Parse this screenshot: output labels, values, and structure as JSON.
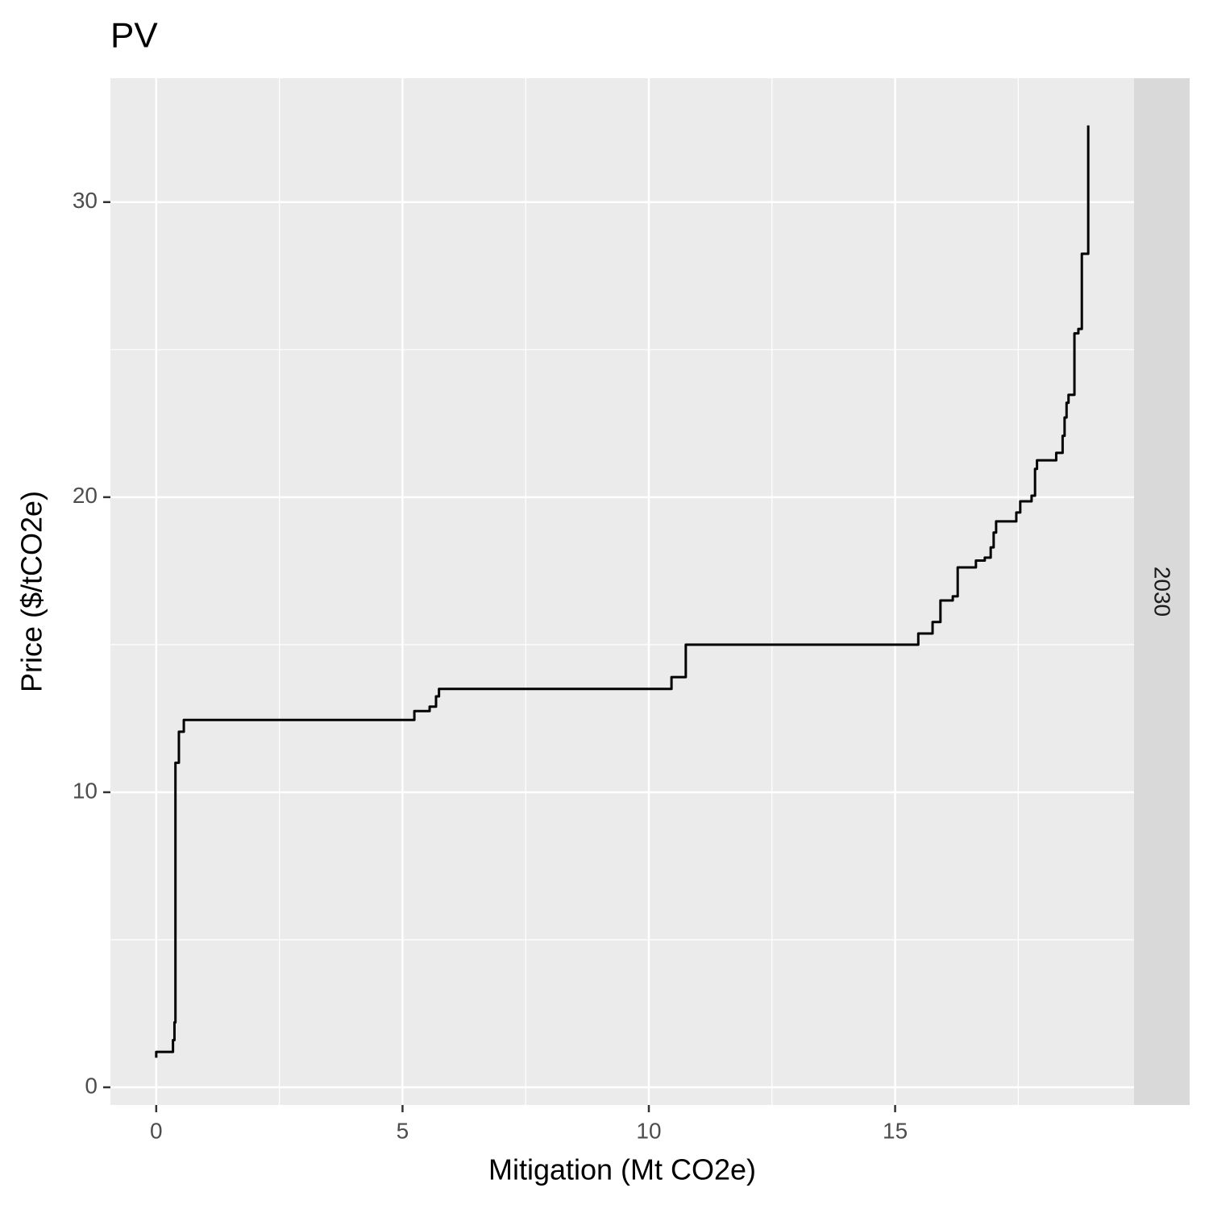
{
  "chart_data": {
    "type": "line",
    "title": "PV",
    "xlabel": "Mitigation (Mt CO2e)",
    "ylabel": "Price ($/tCO2e)",
    "facet_label": "2030",
    "x": [
      0,
      0,
      0.34,
      0.34,
      0.37,
      0.37,
      0.39,
      0.39,
      0.46,
      0.46,
      0.56,
      0.56,
      5.24,
      5.24,
      5.55,
      5.55,
      5.68,
      5.68,
      5.74,
      5.74,
      10.46,
      10.46,
      10.75,
      10.75,
      15.47,
      15.47,
      15.76,
      15.76,
      15.92,
      15.92,
      16.17,
      16.17,
      16.27,
      16.27,
      16.64,
      16.64,
      16.82,
      16.82,
      16.94,
      16.94,
      17.0,
      17.0,
      17.05,
      17.05,
      17.46,
      17.46,
      17.54,
      17.54,
      17.77,
      17.77,
      17.84,
      17.84,
      17.88,
      17.88,
      18.27,
      18.27,
      18.4,
      18.4,
      18.44,
      18.44,
      18.48,
      18.48,
      18.52,
      18.52,
      18.64,
      18.64,
      18.72,
      18.72,
      18.79,
      18.79,
      18.92,
      18.92
    ],
    "values": [
      1.0,
      1.2,
      1.2,
      1.6,
      1.6,
      2.2,
      2.2,
      11.0,
      11.0,
      12.05,
      12.05,
      12.45,
      12.45,
      12.75,
      12.75,
      12.9,
      12.9,
      13.25,
      13.25,
      13.5,
      13.5,
      13.9,
      13.9,
      15.0,
      15.0,
      15.38,
      15.38,
      15.77,
      15.77,
      16.5,
      16.5,
      16.64,
      16.64,
      17.62,
      17.62,
      17.85,
      17.85,
      17.95,
      17.95,
      18.3,
      18.3,
      18.8,
      18.8,
      19.18,
      19.18,
      19.48,
      19.48,
      19.86,
      19.86,
      20.05,
      20.05,
      20.96,
      20.96,
      21.25,
      21.25,
      21.5,
      21.5,
      22.08,
      22.08,
      22.7,
      22.7,
      23.2,
      23.2,
      23.47,
      23.47,
      25.55,
      25.55,
      25.7,
      25.7,
      28.25,
      28.25,
      32.6
    ],
    "color": "#000000",
    "xlim": [
      -0.93,
      19.85
    ],
    "ylim": [
      -0.6,
      34.2
    ],
    "xticks": [
      0,
      5,
      10,
      15
    ],
    "yticks": [
      0,
      10,
      20,
      30
    ],
    "x_minor_ticks": [
      2.5,
      7.5,
      12.5,
      17.5
    ],
    "y_minor_ticks": [
      5,
      15,
      25
    ],
    "grid": true
  }
}
